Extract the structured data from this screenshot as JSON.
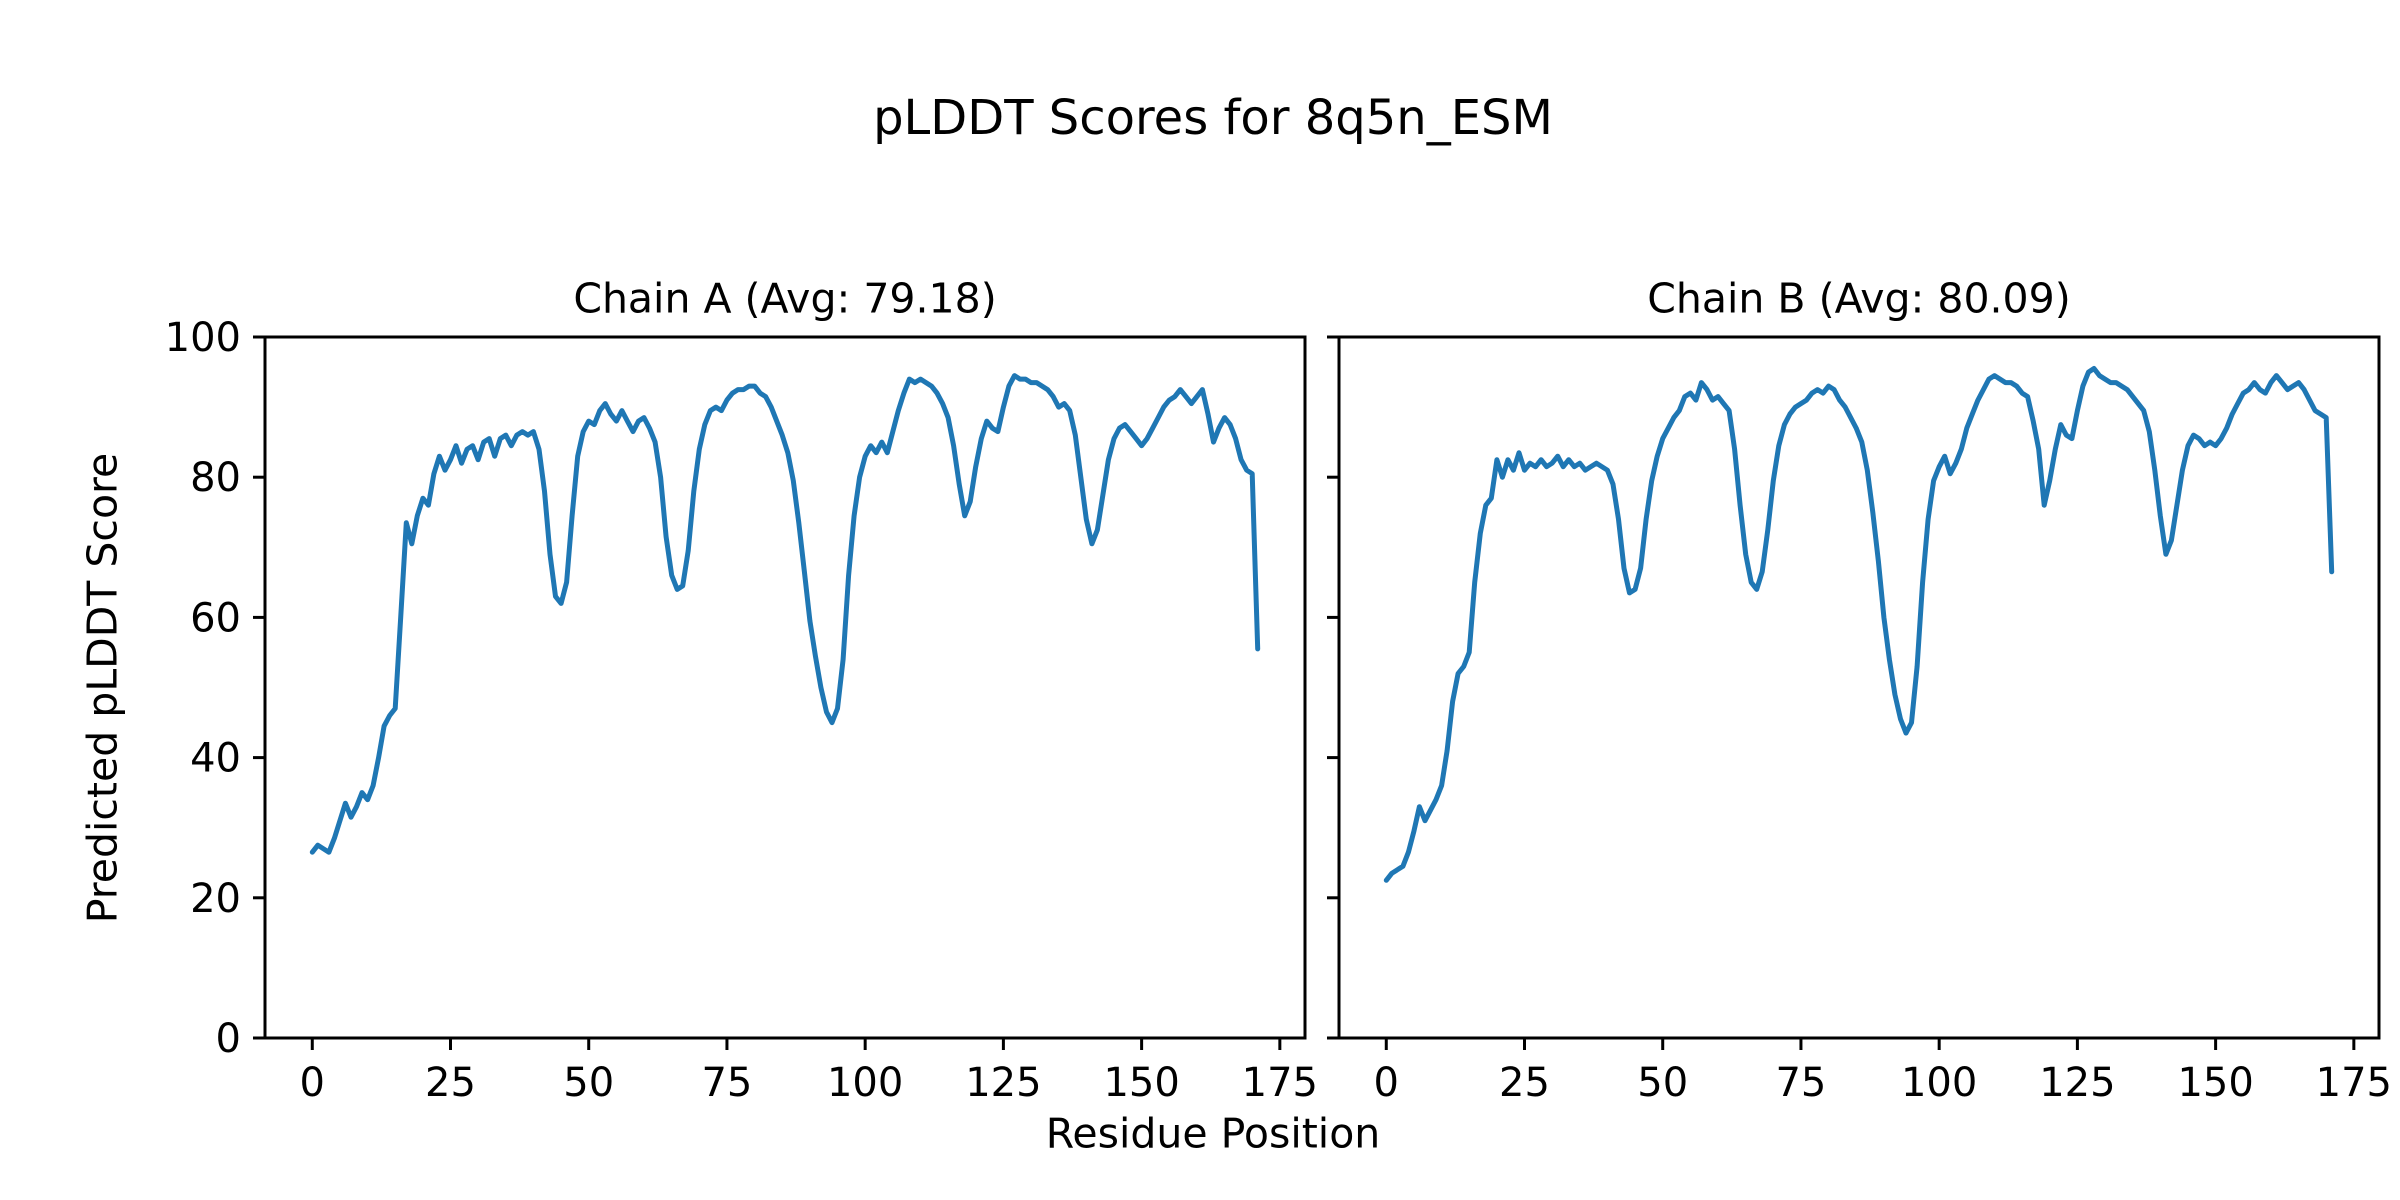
{
  "figure": {
    "title": "pLDDT Scores for 8q5n_ESM",
    "xlabel": "Residue Position",
    "ylabel": "Predicted pLDDT Score"
  },
  "chart_data": {
    "type": "line",
    "line_color": "#1f77b4",
    "line_width": 5,
    "xlabel": "Residue Position",
    "ylabel": "Predicted pLDDT Score",
    "xlim": [
      -8.55,
      179.55
    ],
    "ylim": [
      0,
      100
    ],
    "xticks": [
      0,
      25,
      50,
      75,
      100,
      125,
      150,
      175
    ],
    "yticks": [
      0,
      20,
      40,
      60,
      80,
      100
    ],
    "grid": false,
    "legend": "none",
    "x_is_index": true,
    "subplots": [
      {
        "title": "Chain A (Avg: 79.18)",
        "name": "Chain A",
        "avg": 79.18,
        "values": [
          26.5,
          27.5,
          27,
          26.5,
          28.5,
          31,
          33.5,
          31.5,
          33,
          35,
          34,
          36,
          40,
          44.5,
          46,
          47,
          60,
          73.5,
          70.5,
          74.5,
          77,
          76,
          80.5,
          83,
          81,
          82.5,
          84.5,
          82,
          84,
          84.5,
          82.5,
          85,
          85.5,
          83,
          85.5,
          86,
          84.5,
          86,
          86.5,
          86,
          86.5,
          84,
          78,
          69,
          63,
          62,
          65,
          74.5,
          83,
          86.5,
          88,
          87.5,
          89.5,
          90.5,
          89,
          88,
          89.5,
          88,
          86.5,
          88,
          88.5,
          87,
          85,
          80,
          71.5,
          66,
          64,
          64.5,
          69.5,
          78,
          84,
          87.5,
          89.5,
          90,
          89.5,
          91,
          92,
          92.5,
          92.5,
          93,
          93,
          92,
          91.5,
          90,
          88,
          86,
          83.5,
          79.5,
          73.5,
          66.5,
          59.5,
          54.5,
          50,
          46.5,
          45,
          47,
          54,
          66,
          74.5,
          80,
          83,
          84.5,
          83.5,
          85,
          83.5,
          86.5,
          89.5,
          92,
          94,
          93.5,
          94,
          93.5,
          93,
          92,
          90.5,
          88.5,
          84.5,
          79,
          74.5,
          76.5,
          81.5,
          85.5,
          88,
          87,
          86.5,
          90,
          93,
          94.5,
          94,
          94,
          93.5,
          93.5,
          93,
          92.5,
          91.5,
          90,
          90.5,
          89.5,
          86,
          80,
          74,
          70.5,
          72.5,
          77.5,
          82.5,
          85.5,
          87,
          87.5,
          86.5,
          85.5,
          84.5,
          85.5,
          87,
          88.5,
          90,
          91,
          91.5,
          92.5,
          91.5,
          90.5,
          91.5,
          92.5,
          89,
          85,
          87,
          88.5,
          87.5,
          85.5,
          82.5,
          81,
          80.5,
          55.5
        ]
      },
      {
        "title": "Chain B (Avg: 80.09)",
        "name": "Chain B",
        "avg": 80.09,
        "values": [
          22.5,
          23.5,
          24,
          24.5,
          26.5,
          29.5,
          33,
          31,
          32.5,
          34,
          36,
          41,
          48,
          52,
          53,
          55,
          65,
          72,
          76,
          77,
          82.5,
          80,
          82.5,
          81,
          83.5,
          81,
          82,
          81.5,
          82.5,
          81.5,
          82,
          83,
          81.5,
          82.5,
          81.5,
          82,
          81,
          81.5,
          82,
          81.5,
          81,
          79,
          74,
          67,
          63.5,
          64,
          67,
          74,
          79.5,
          83,
          85.5,
          87,
          88.5,
          89.5,
          91.5,
          92,
          91,
          93.5,
          92.5,
          91,
          91.5,
          90.5,
          89.5,
          84,
          76,
          69,
          65,
          64,
          66.5,
          72.5,
          79.5,
          84.5,
          87.5,
          89,
          90,
          90.5,
          91,
          92,
          92.5,
          92,
          93,
          92.5,
          91,
          90,
          88.5,
          87,
          85,
          81,
          75,
          68,
          60,
          54,
          49,
          45.5,
          43.5,
          45,
          53,
          65,
          74,
          79.5,
          81.5,
          83,
          80.5,
          82,
          84,
          87,
          89,
          91,
          92.5,
          94,
          94.5,
          94,
          93.5,
          93.5,
          93,
          92,
          91.5,
          88,
          84,
          76,
          79.5,
          84,
          87.5,
          86,
          85.5,
          89.5,
          93,
          95,
          95.5,
          94.5,
          94,
          93.5,
          93.5,
          93,
          92.5,
          91.5,
          90.5,
          89.5,
          86.5,
          81,
          74.5,
          69,
          71,
          76,
          81,
          84.5,
          86,
          85.5,
          84.5,
          85,
          84.5,
          85.5,
          87,
          89,
          90.5,
          92,
          92.5,
          93.5,
          92.5,
          92,
          93.5,
          94.5,
          93.5,
          92.5,
          93,
          93.5,
          92.5,
          91,
          89.5,
          89,
          88.5,
          66.5
        ]
      }
    ]
  }
}
